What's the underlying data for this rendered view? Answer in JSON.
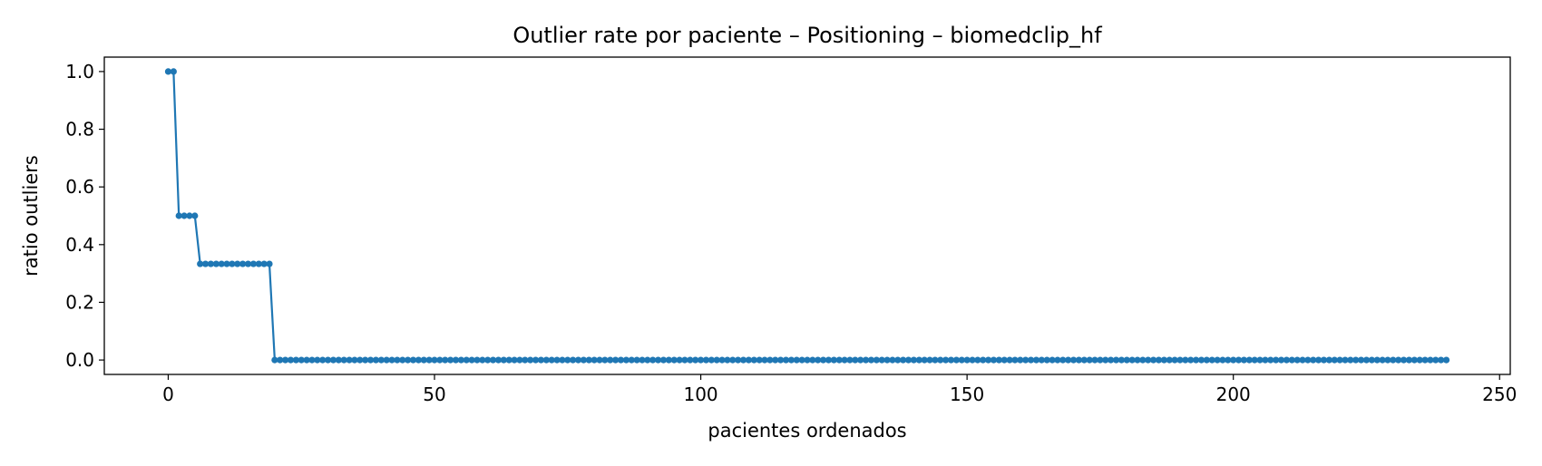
{
  "chart_data": {
    "type": "line",
    "title": "Outlier rate por paciente – Positioning – biomedclip_hf",
    "xlabel": "pacientes ordenados",
    "ylabel": "ratio outliers",
    "xlim": [
      -12,
      252
    ],
    "ylim": [
      -0.05,
      1.05
    ],
    "xticks": [
      0,
      50,
      100,
      150,
      200,
      250
    ],
    "xtick_labels": [
      "0",
      "50",
      "100",
      "150",
      "200",
      "250"
    ],
    "yticks": [
      0.0,
      0.2,
      0.4,
      0.6,
      0.8,
      1.0
    ],
    "ytick_labels": [
      "0.0",
      "0.2",
      "0.4",
      "0.6",
      "0.8",
      "1.0"
    ],
    "grid": false,
    "color": "#1f77b4",
    "marker": "circle",
    "series": [
      {
        "segments": [
          {
            "x_start": 0,
            "x_end": 1,
            "value": 1.0
          },
          {
            "x_start": 2,
            "x_end": 5,
            "value": 0.5
          },
          {
            "x_start": 6,
            "x_end": 19,
            "value": 0.3333
          },
          {
            "x_start": 20,
            "x_end": 240,
            "value": 0.0
          }
        ]
      }
    ]
  }
}
